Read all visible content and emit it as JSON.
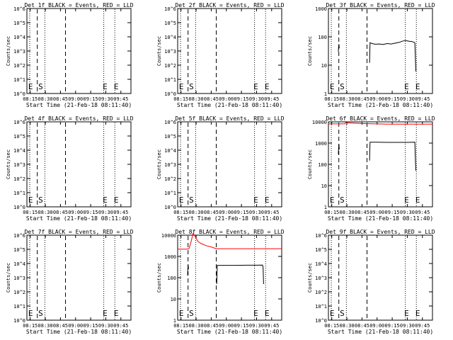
{
  "colors": {
    "events": "#000000",
    "lld": "#ff0000",
    "frame": "#000000",
    "background": "#ffffff"
  },
  "common": {
    "xlabel": "Start Time (21-Feb-18 08:11:40)",
    "ylabel": "Counts/sec",
    "x_ticks": [
      "08:15",
      "08:30",
      "08:45",
      "09:00",
      "09:15",
      "09:30",
      "09:45"
    ],
    "x_tick_minutes": [
      15,
      30,
      45,
      60,
      75,
      90,
      105
    ],
    "xlim_minutes_after_0800": [
      11.67,
      115
    ],
    "markers": [
      {
        "minute": 14.5,
        "style": "dotted"
      },
      {
        "minute": 22.0,
        "style": "dashed"
      },
      {
        "minute": 29.5,
        "style": "dotted"
      },
      {
        "minute": 50.0,
        "style": "dashed"
      },
      {
        "minute": 88.0,
        "style": "dotted"
      },
      {
        "minute": 99.0,
        "style": "dotted"
      }
    ],
    "marker_letters": [
      {
        "text": "E",
        "minute": 13.0
      },
      {
        "text": "S",
        "minute": 23.0
      },
      {
        "text": "E",
        "minute": 87.0
      },
      {
        "text": "E",
        "minute": 98.0
      }
    ]
  },
  "chart_data": [
    {
      "type": "line",
      "title": "Det 1f BLACK = Events, RED = LLD",
      "yscale": "log",
      "ylim": [
        1,
        1000000
      ],
      "y_ticks": [
        "10^0",
        "10^1",
        "10^2",
        "10^3",
        "10^4",
        "10^5",
        "10^6"
      ],
      "series": []
    },
    {
      "type": "line",
      "title": "Det 2f BLACK = Events, RED = LLD",
      "yscale": "log",
      "ylim": [
        1,
        1000000
      ],
      "y_ticks": [
        "10^0",
        "10^1",
        "10^2",
        "10^3",
        "10^4",
        "10^5",
        "10^6"
      ],
      "series": []
    },
    {
      "type": "line",
      "title": "Det 3f BLACK = Events, RED = LLD",
      "yscale": "log",
      "ylim": [
        1,
        1000
      ],
      "y_ticks": [
        "1",
        "10",
        "100",
        "1000"
      ],
      "series": [
        {
          "color": "black",
          "x": [
            21.5,
            21.8,
            22.1,
            22.4
          ],
          "y": [
            30,
            45,
            55,
            40
          ]
        },
        {
          "color": "black",
          "x": [
            52.5,
            53,
            55,
            58,
            62,
            66,
            70,
            74,
            78,
            82,
            85,
            88,
            90,
            92,
            95,
            97.5,
            98,
            98.5
          ],
          "y": [
            12,
            62,
            58,
            55,
            56,
            54,
            58,
            56,
            60,
            64,
            70,
            74,
            72,
            70,
            68,
            62,
            20,
            6
          ]
        }
      ]
    },
    {
      "type": "line",
      "title": "Det 4f BLACK = Events, RED = LLD",
      "yscale": "log",
      "ylim": [
        1,
        1000000
      ],
      "y_ticks": [
        "10^0",
        "10^1",
        "10^2",
        "10^3",
        "10^4",
        "10^5",
        "10^6"
      ],
      "series": []
    },
    {
      "type": "line",
      "title": "Det 5f BLACK = Events, RED = LLD",
      "yscale": "log",
      "ylim": [
        1,
        1000000
      ],
      "y_ticks": [
        "10^0",
        "10^1",
        "10^2",
        "10^3",
        "10^4",
        "10^5",
        "10^6"
      ],
      "series": []
    },
    {
      "type": "line",
      "title": "Det 6f BLACK = Events, RED = LLD",
      "yscale": "log",
      "ylim": [
        1,
        10000
      ],
      "y_ticks": [
        "1",
        "10",
        "100",
        "1000",
        "10000"
      ],
      "series": [
        {
          "color": "red",
          "x": [
            11.7,
            20,
            28,
            29,
            30,
            40,
            50,
            60,
            70,
            80,
            90,
            99,
            115
          ],
          "y": [
            8000,
            8000,
            8000,
            9500,
            9000,
            8500,
            8200,
            8000,
            7800,
            7800,
            7800,
            7800,
            7800
          ]
        },
        {
          "color": "black",
          "x": [
            21.5,
            21.8,
            22.1,
            22.4
          ],
          "y": [
            300,
            600,
            900,
            500
          ]
        },
        {
          "color": "black",
          "x": [
            52.5,
            53,
            60,
            70,
            80,
            90,
            97.5,
            98,
            98.5
          ],
          "y": [
            150,
            1100,
            1100,
            1080,
            1080,
            1080,
            1100,
            200,
            50
          ]
        }
      ]
    },
    {
      "type": "line",
      "title": "Det 7f BLACK = Events, RED = LLD",
      "yscale": "log",
      "ylim": [
        1,
        1000000
      ],
      "y_ticks": [
        "10^0",
        "10^1",
        "10^2",
        "10^3",
        "10^4",
        "10^5",
        "10^6"
      ],
      "series": []
    },
    {
      "type": "line",
      "title": "Det 8f BLACK = Events, RED = LLD",
      "yscale": "log",
      "ylim": [
        1,
        10000
      ],
      "y_ticks": [
        "1",
        "10",
        "100",
        "1000",
        "10000"
      ],
      "series": [
        {
          "color": "red",
          "x": [
            11.7,
            20,
            23,
            25,
            27,
            29,
            30,
            32,
            35,
            40,
            45,
            50,
            60,
            80,
            100,
            115
          ],
          "y": [
            2200,
            2200,
            2300,
            5000,
            12000,
            9000,
            7000,
            5000,
            4000,
            3200,
            2800,
            2300,
            2300,
            2300,
            2300,
            2300
          ]
        },
        {
          "color": "black",
          "x": [
            21.5,
            21.8,
            22.1,
            22.4
          ],
          "y": [
            130,
            270,
            400,
            250
          ]
        },
        {
          "color": "black",
          "x": [
            50.5,
            51,
            60,
            70,
            80,
            90,
            96,
            96.5,
            97
          ],
          "y": [
            50,
            380,
            380,
            380,
            385,
            385,
            390,
            300,
            50
          ]
        }
      ]
    },
    {
      "type": "line",
      "title": "Det 9f BLACK = Events, RED = LLD",
      "yscale": "log",
      "ylim": [
        1,
        1000000
      ],
      "y_ticks": [
        "10^0",
        "10^1",
        "10^2",
        "10^3",
        "10^4",
        "10^5",
        "10^6"
      ],
      "series": []
    }
  ]
}
